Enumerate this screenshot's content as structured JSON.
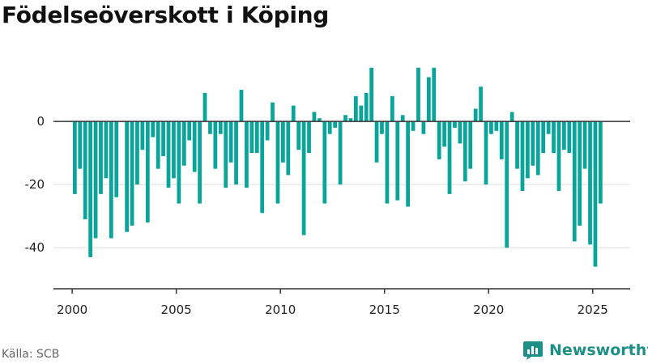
{
  "title": "Födelseöverskott i Köping",
  "source": "Källa: SCB",
  "brand": {
    "name": "Newsworthy",
    "icon": "newsworthy-logo-icon"
  },
  "colors": {
    "bar": "#0aa59a",
    "zero_line": "#333333",
    "grid": "#dddddd",
    "axis": "#333333",
    "brand": "#1d8f87"
  },
  "chart_data": {
    "type": "bar",
    "title": "Födelseöverskott i Köping",
    "xlabel": "",
    "ylabel": "",
    "grid": true,
    "x_ticks": [
      2000,
      2005,
      2010,
      2015,
      2020,
      2025
    ],
    "y_ticks": [
      0,
      -20,
      -40
    ],
    "xlim": [
      1999.1,
      2026.8
    ],
    "ylim": [
      -53,
      20
    ],
    "series": [
      {
        "values": [
          {
            "x": 2000.125,
            "y": -23
          },
          {
            "x": 2000.375,
            "y": -15
          },
          {
            "x": 2000.625,
            "y": -31
          },
          {
            "x": 2000.875,
            "y": -43
          },
          {
            "x": 2001.125,
            "y": -37
          },
          {
            "x": 2001.375,
            "y": -23
          },
          {
            "x": 2001.625,
            "y": -18
          },
          {
            "x": 2001.875,
            "y": -37
          },
          {
            "x": 2002.125,
            "y": -24
          },
          {
            "x": 2002.375,
            "y": 0
          },
          {
            "x": 2002.625,
            "y": -35
          },
          {
            "x": 2002.875,
            "y": -33
          },
          {
            "x": 2003.125,
            "y": -20
          },
          {
            "x": 2003.375,
            "y": -9
          },
          {
            "x": 2003.625,
            "y": -32
          },
          {
            "x": 2003.875,
            "y": -5
          },
          {
            "x": 2004.125,
            "y": -15
          },
          {
            "x": 2004.375,
            "y": -11
          },
          {
            "x": 2004.625,
            "y": -21
          },
          {
            "x": 2004.875,
            "y": -18
          },
          {
            "x": 2005.125,
            "y": -26
          },
          {
            "x": 2005.375,
            "y": -14
          },
          {
            "x": 2005.625,
            "y": -6
          },
          {
            "x": 2005.875,
            "y": -16
          },
          {
            "x": 2006.125,
            "y": -26
          },
          {
            "x": 2006.375,
            "y": 9
          },
          {
            "x": 2006.625,
            "y": -4
          },
          {
            "x": 2006.875,
            "y": -15
          },
          {
            "x": 2007.125,
            "y": -4
          },
          {
            "x": 2007.375,
            "y": -21
          },
          {
            "x": 2007.625,
            "y": -13
          },
          {
            "x": 2007.875,
            "y": -20
          },
          {
            "x": 2008.125,
            "y": 10
          },
          {
            "x": 2008.375,
            "y": -21
          },
          {
            "x": 2008.625,
            "y": -10
          },
          {
            "x": 2008.875,
            "y": -10
          },
          {
            "x": 2009.125,
            "y": -29
          },
          {
            "x": 2009.375,
            "y": -6
          },
          {
            "x": 2009.625,
            "y": 6
          },
          {
            "x": 2009.875,
            "y": -26
          },
          {
            "x": 2010.125,
            "y": -13
          },
          {
            "x": 2010.375,
            "y": -17
          },
          {
            "x": 2010.625,
            "y": 5
          },
          {
            "x": 2010.875,
            "y": -9
          },
          {
            "x": 2011.125,
            "y": -36
          },
          {
            "x": 2011.375,
            "y": -10
          },
          {
            "x": 2011.625,
            "y": 3
          },
          {
            "x": 2011.875,
            "y": 1
          },
          {
            "x": 2012.125,
            "y": -26
          },
          {
            "x": 2012.375,
            "y": -4
          },
          {
            "x": 2012.625,
            "y": -2
          },
          {
            "x": 2012.875,
            "y": -20
          },
          {
            "x": 2013.125,
            "y": 2
          },
          {
            "x": 2013.375,
            "y": 1
          },
          {
            "x": 2013.625,
            "y": 8
          },
          {
            "x": 2013.875,
            "y": 5
          },
          {
            "x": 2014.125,
            "y": 9
          },
          {
            "x": 2014.375,
            "y": 17
          },
          {
            "x": 2014.625,
            "y": -13
          },
          {
            "x": 2014.875,
            "y": -4
          },
          {
            "x": 2015.125,
            "y": -26
          },
          {
            "x": 2015.375,
            "y": 8
          },
          {
            "x": 2015.625,
            "y": -25
          },
          {
            "x": 2015.875,
            "y": 2
          },
          {
            "x": 2016.125,
            "y": -27
          },
          {
            "x": 2016.375,
            "y": -3
          },
          {
            "x": 2016.625,
            "y": 17
          },
          {
            "x": 2016.875,
            "y": -4
          },
          {
            "x": 2017.125,
            "y": 14
          },
          {
            "x": 2017.375,
            "y": 17
          },
          {
            "x": 2017.625,
            "y": -12
          },
          {
            "x": 2017.875,
            "y": -8
          },
          {
            "x": 2018.125,
            "y": -23
          },
          {
            "x": 2018.375,
            "y": -2
          },
          {
            "x": 2018.625,
            "y": -7
          },
          {
            "x": 2018.875,
            "y": -19
          },
          {
            "x": 2019.125,
            "y": -15
          },
          {
            "x": 2019.375,
            "y": 4
          },
          {
            "x": 2019.625,
            "y": 11
          },
          {
            "x": 2019.875,
            "y": -20
          },
          {
            "x": 2020.125,
            "y": -4
          },
          {
            "x": 2020.375,
            "y": -3
          },
          {
            "x": 2020.625,
            "y": -12
          },
          {
            "x": 2020.875,
            "y": -40
          },
          {
            "x": 2021.125,
            "y": 3
          },
          {
            "x": 2021.375,
            "y": -15
          },
          {
            "x": 2021.625,
            "y": -22
          },
          {
            "x": 2021.875,
            "y": -18
          },
          {
            "x": 2022.125,
            "y": -14
          },
          {
            "x": 2022.375,
            "y": -17
          },
          {
            "x": 2022.625,
            "y": -10
          },
          {
            "x": 2022.875,
            "y": -4
          },
          {
            "x": 2023.125,
            "y": -10
          },
          {
            "x": 2023.375,
            "y": -22
          },
          {
            "x": 2023.625,
            "y": -9
          },
          {
            "x": 2023.875,
            "y": -10
          },
          {
            "x": 2024.125,
            "y": -38
          },
          {
            "x": 2024.375,
            "y": -33
          },
          {
            "x": 2024.625,
            "y": -15
          },
          {
            "x": 2024.875,
            "y": -39
          },
          {
            "x": 2025.125,
            "y": -46
          },
          {
            "x": 2025.375,
            "y": -26
          }
        ]
      }
    ]
  }
}
